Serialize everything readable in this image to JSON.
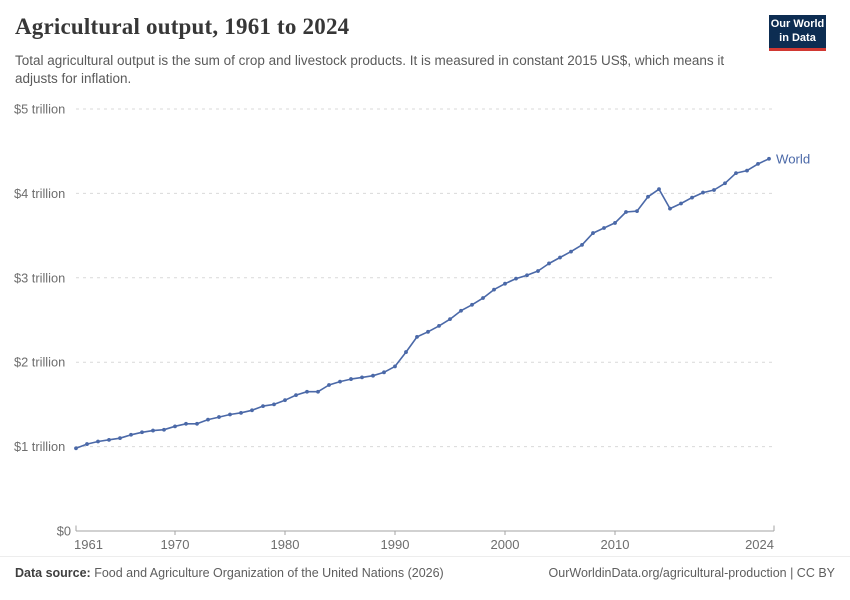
{
  "header": {
    "title": "Agricultural output, 1961 to 2024",
    "subtitle": "Total agricultural output is the sum of crop and livestock products. It is measured in constant 2015 US$, which means it adjusts for inflation.",
    "logo": {
      "line1": "Our World",
      "line2": "in Data",
      "bg_color": "#0d2d52",
      "accent_color": "#d13832"
    }
  },
  "chart_data": {
    "type": "line",
    "title": "Agricultural output, 1961 to 2024",
    "xlabel": "",
    "ylabel": "",
    "xlim": [
      1961,
      2024
    ],
    "ylim": [
      0,
      5
    ],
    "grid": "horizontal-dashed",
    "legend_position": "end-of-line",
    "x_ticks": [
      1961,
      1970,
      1980,
      1990,
      2000,
      2010,
      2024
    ],
    "y_ticks": [
      {
        "value": 0,
        "label": "$0"
      },
      {
        "value": 1,
        "label": "$1 trillion"
      },
      {
        "value": 2,
        "label": "$2 trillion"
      },
      {
        "value": 3,
        "label": "$3 trillion"
      },
      {
        "value": 4,
        "label": "$4 trillion"
      },
      {
        "value": 5,
        "label": "$5 trillion"
      }
    ],
    "unit": "trillion constant 2015 US$",
    "series": [
      {
        "name": "World",
        "color": "#4b69a8",
        "x": [
          1961,
          1962,
          1963,
          1964,
          1965,
          1966,
          1967,
          1968,
          1969,
          1970,
          1971,
          1972,
          1973,
          1974,
          1975,
          1976,
          1977,
          1978,
          1979,
          1980,
          1981,
          1982,
          1983,
          1984,
          1985,
          1986,
          1987,
          1988,
          1989,
          1990,
          1991,
          1992,
          1993,
          1994,
          1995,
          1996,
          1997,
          1998,
          1999,
          2000,
          2001,
          2002,
          2003,
          2004,
          2005,
          2006,
          2007,
          2008,
          2009,
          2010,
          2011,
          2012,
          2013,
          2014,
          2015,
          2016,
          2017,
          2018,
          2019,
          2020,
          2021,
          2022,
          2023,
          2024
        ],
        "values": [
          0.98,
          1.03,
          1.06,
          1.08,
          1.1,
          1.14,
          1.17,
          1.19,
          1.2,
          1.24,
          1.27,
          1.27,
          1.32,
          1.35,
          1.38,
          1.4,
          1.43,
          1.48,
          1.5,
          1.55,
          1.61,
          1.65,
          1.65,
          1.73,
          1.77,
          1.8,
          1.82,
          1.84,
          1.88,
          1.95,
          2.12,
          2.3,
          2.36,
          2.43,
          2.51,
          2.61,
          2.68,
          2.76,
          2.86,
          2.93,
          2.99,
          3.03,
          3.08,
          3.17,
          3.24,
          3.31,
          3.39,
          3.53,
          3.59,
          3.65,
          3.78,
          3.79,
          3.96,
          4.05,
          3.82,
          3.88,
          3.95,
          4.01,
          4.04,
          4.12,
          4.24,
          4.27,
          4.35,
          4.41
        ]
      }
    ],
    "colors": {
      "gridline": "#d9d9d9",
      "axis": "#a3a3a3",
      "tick_label": "#6e6e6e"
    }
  },
  "footer": {
    "source_label": "Data source:",
    "source_text": " Food and Agriculture Organization of the United Nations (2026)",
    "right_text": "OurWorldinData.org/agricultural-production | CC BY"
  }
}
